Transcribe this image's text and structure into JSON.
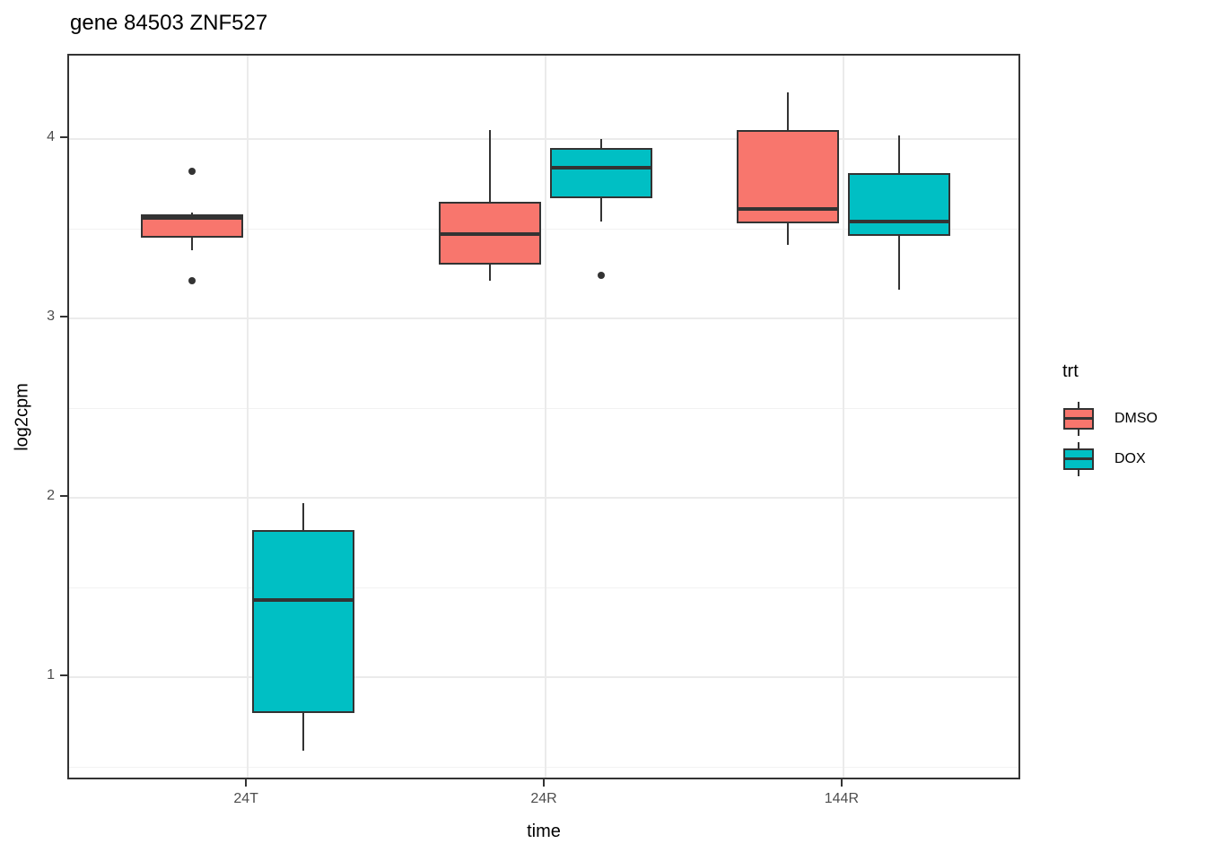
{
  "chart_data": {
    "type": "boxplot",
    "title": "gene 84503 ZNF527",
    "xlabel": "time",
    "ylabel": "log2cpm",
    "categories": [
      "24T",
      "24R",
      "144R"
    ],
    "y_ticks": [
      4,
      3,
      2,
      1
    ],
    "y_minor_ticks": [
      3.5,
      2.5,
      1.5,
      0.5
    ],
    "ylim": [
      0.42,
      4.465
    ],
    "grid": "on",
    "legend": {
      "title": "trt",
      "position": "right",
      "entries": [
        {
          "label": "DMSO",
          "color": "#F8766D"
        },
        {
          "label": "DOX",
          "color": "#00BFC4"
        }
      ]
    },
    "colors": {
      "stroke": "#333333",
      "grid_major": "#ebebeb",
      "grid_minor": "#f2f2f2",
      "tick_text": "#4d4d4d"
    },
    "series": [
      {
        "name": "DMSO",
        "color": "#F8766D",
        "boxes": [
          {
            "category": "24T",
            "whisker_low": 3.38,
            "q1": 3.45,
            "median": 3.56,
            "q3": 3.58,
            "whisker_high": 3.59,
            "outliers": [
              3.82,
              3.21
            ]
          },
          {
            "category": "24R",
            "whisker_low": 3.21,
            "q1": 3.3,
            "median": 3.47,
            "q3": 3.65,
            "whisker_high": 4.05,
            "outliers": []
          },
          {
            "category": "144R",
            "whisker_low": 3.41,
            "q1": 3.53,
            "median": 3.61,
            "q3": 4.05,
            "whisker_high": 4.26,
            "outliers": []
          }
        ]
      },
      {
        "name": "DOX",
        "color": "#00BFC4",
        "boxes": [
          {
            "category": "24T",
            "whisker_low": 0.59,
            "q1": 0.8,
            "median": 1.43,
            "q3": 1.82,
            "whisker_high": 1.97,
            "outliers": []
          },
          {
            "category": "24R",
            "whisker_low": 3.54,
            "q1": 3.67,
            "median": 3.84,
            "q3": 3.95,
            "whisker_high": 4.0,
            "outliers": [
              3.24
            ]
          },
          {
            "category": "144R",
            "whisker_low": 3.16,
            "q1": 3.46,
            "median": 3.54,
            "q3": 3.81,
            "whisker_high": 4.02,
            "outliers": []
          }
        ]
      }
    ]
  }
}
